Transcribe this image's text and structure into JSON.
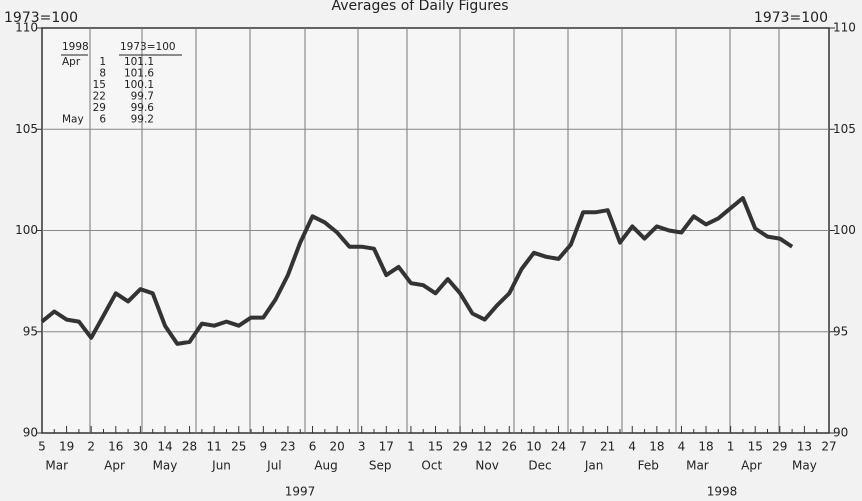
{
  "chart_data": {
    "type": "line",
    "title": "Averages of Daily Figures",
    "ylabel": "1973=100",
    "y2label": "1973=100",
    "categories": [
      "5",
      null,
      "19",
      null,
      "2",
      null,
      "16",
      null,
      "30",
      null,
      "14",
      null,
      "28",
      null,
      "11",
      null,
      "25",
      null,
      "9",
      null,
      "23",
      null,
      "6",
      null,
      "20",
      null,
      "3",
      null,
      "17",
      null,
      "1",
      null,
      "15",
      null,
      "29",
      null,
      "12",
      null,
      "26",
      null,
      "10",
      null,
      "24",
      null,
      "7",
      null,
      "21",
      null,
      "4",
      null,
      "18",
      null,
      "4",
      null,
      "18",
      null,
      "1",
      null,
      "15",
      null,
      "29",
      null,
      "13",
      null,
      "27"
    ],
    "months": [
      "Mar",
      "Apr",
      "May",
      "Jun",
      "Jul",
      "Aug",
      "Sep",
      "Oct",
      "Nov",
      "Dec",
      "Jan",
      "Feb",
      "Mar",
      "Apr",
      "May"
    ],
    "years": [
      "1997",
      "1998"
    ],
    "series": [
      {
        "name": "1973=100",
        "color": "#333333",
        "values": [
          95.5,
          96.0,
          95.6,
          95.5,
          94.7,
          95.8,
          96.9,
          96.5,
          97.1,
          96.9,
          95.3,
          94.4,
          94.5,
          95.4,
          95.3,
          95.5,
          95.3,
          95.7,
          95.7,
          96.6,
          97.8,
          99.4,
          100.7,
          100.4,
          99.9,
          99.2,
          99.2,
          99.1,
          97.8,
          98.2,
          97.4,
          97.3,
          96.9,
          97.6,
          96.9,
          95.9,
          95.6,
          96.3,
          96.9,
          98.1,
          98.9,
          98.7,
          98.6,
          99.3,
          100.9,
          100.9,
          101.0,
          99.4,
          100.2,
          99.6,
          100.2,
          100.0,
          99.9,
          100.7,
          100.3,
          100.6,
          101.1,
          101.6,
          100.1,
          99.7,
          99.6,
          99.2,
          null,
          null,
          null
        ]
      }
    ],
    "ylim": [
      90,
      110
    ],
    "yticks": [
      90,
      95,
      100,
      105,
      110
    ],
    "grid": true,
    "inset_table": {
      "header": [
        "1998",
        "1973=100"
      ],
      "rows": [
        {
          "month": "Apr",
          "day": "1",
          "value": 101.1
        },
        {
          "day": "8",
          "value": 101.6
        },
        {
          "day": "15",
          "value": 100.1
        },
        {
          "day": "22",
          "value": 99.7
        },
        {
          "day": "29",
          "value": 99.6
        },
        {
          "month": "May",
          "day": "6",
          "value": 99.2
        }
      ]
    }
  }
}
